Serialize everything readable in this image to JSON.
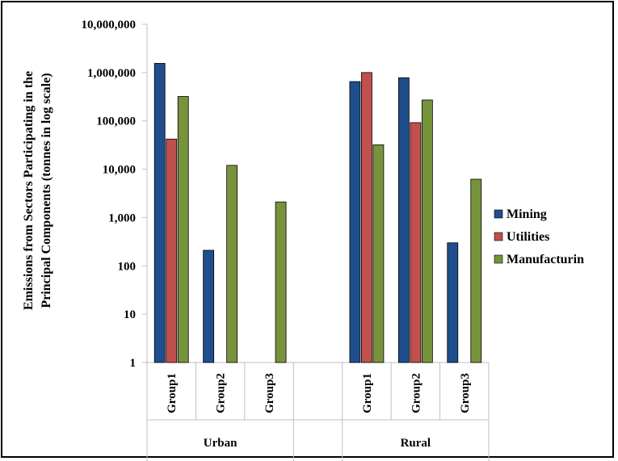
{
  "chart_data": {
    "type": "bar",
    "scale": "log",
    "ylabel_line1": "Emissions from Sectors Participating in the",
    "ylabel_line2": "Principal Components (tonnes in log scale)",
    "yticks": [
      "1",
      "10",
      "100",
      "1,000",
      "10,000",
      "100,000",
      "1,000,000",
      "10,000,000"
    ],
    "ylim": [
      1,
      10000000
    ],
    "groups": [
      {
        "name": "Urban",
        "categories": [
          "Group1",
          "Group2",
          "Group3"
        ]
      },
      {
        "name": "Rural",
        "categories": [
          "Group1",
          "Group2",
          "Group3"
        ]
      }
    ],
    "categories": [
      "Urban Group1",
      "Urban Group2",
      "Urban Group3",
      "Rural Group1",
      "Rural Group2",
      "Rural Group3"
    ],
    "series": [
      {
        "name": "Mining",
        "color": "#1F4E8C",
        "values": [
          1550000,
          210,
          null,
          650000,
          780000,
          300
        ]
      },
      {
        "name": "Utilities",
        "color": "#C0504D",
        "values": [
          42000,
          null,
          null,
          1000000,
          92000,
          null
        ]
      },
      {
        "name": "Manufacturin",
        "color": "#77933C",
        "values": [
          320000,
          12000,
          2100,
          32000,
          270000,
          6200
        ]
      }
    ],
    "grid": false,
    "legend_position": "right"
  }
}
